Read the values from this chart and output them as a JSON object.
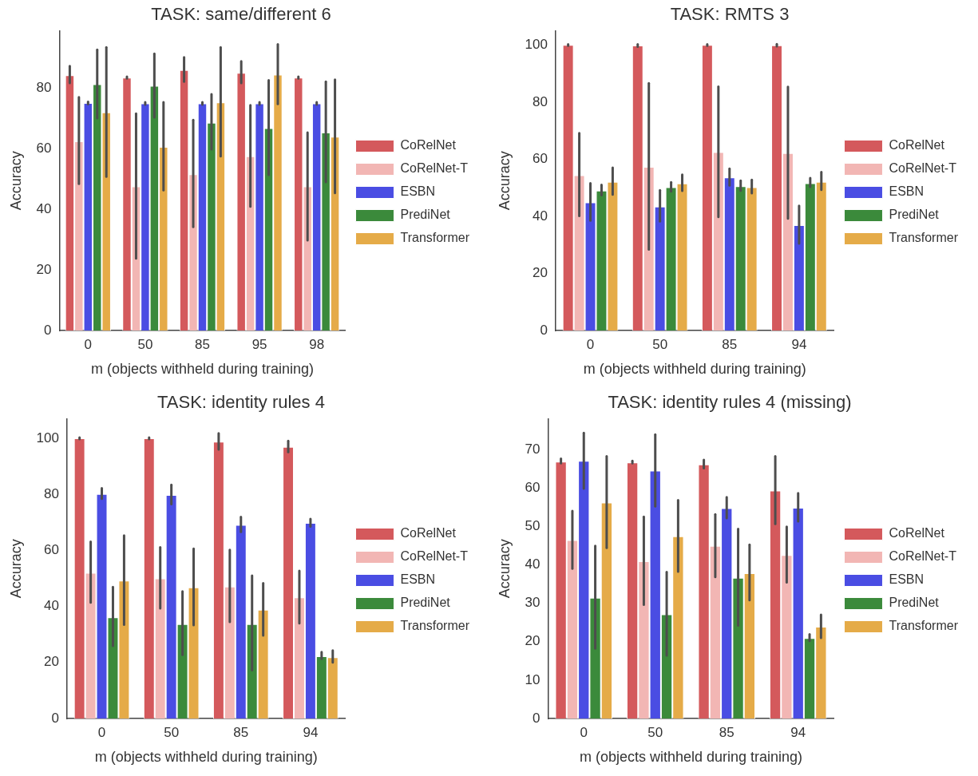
{
  "chart_data": [
    {
      "type": "bar",
      "title": "TASK: same/different 6",
      "xlabel": "m (objects withheld during training)",
      "ylabel": "Accuracy",
      "categories": [
        "0",
        "50",
        "85",
        "95",
        "98"
      ],
      "ylim": [
        0,
        99
      ],
      "yticks": [
        0,
        20,
        40,
        60,
        80
      ],
      "grid": false,
      "legend": "right",
      "series": [
        {
          "name": "CoRelNet",
          "color": "#d4595c",
          "values": [
            84.3,
            83.5,
            86,
            85.1,
            83.5
          ],
          "errors": [
            [
              81.7,
              87.3
            ],
            [
              83.2,
              83.8
            ],
            [
              82.2,
              90.2
            ],
            [
              81.7,
              88.9
            ],
            [
              83.2,
              83.8
            ]
          ]
        },
        {
          "name": "CoRelNet-T",
          "color": "#f2b6b4",
          "values": [
            62.5,
            47.6,
            51.6,
            57.5,
            47.6
          ],
          "errors": [
            [
              48.4,
              77
            ],
            [
              23.8,
              71.6
            ],
            [
              34.2,
              69.5
            ],
            [
              40.9,
              74.4
            ],
            [
              29.8,
              65.4
            ]
          ]
        },
        {
          "name": "ESBN",
          "color": "#4a4de3",
          "values": [
            75.1,
            75,
            75,
            75,
            75
          ],
          "errors": [
            [
              74.7,
              75.5
            ],
            [
              74.6,
              75.4
            ],
            [
              74.6,
              75.4
            ],
            [
              74.6,
              75.4
            ],
            [
              74.6,
              75.4
            ]
          ]
        },
        {
          "name": "PrediNet",
          "color": "#3b8a3b",
          "values": [
            81.3,
            80.8,
            68.6,
            66.8,
            65.4
          ],
          "errors": [
            [
              70.1,
              92.7
            ],
            [
              70.4,
              91.4
            ],
            [
              59.8,
              78
            ],
            [
              51.4,
              82.6
            ],
            [
              49,
              82.2
            ]
          ]
        },
        {
          "name": "Transformer",
          "color": "#e5ab48",
          "values": [
            72,
            60.6,
            75.3,
            84.5,
            64
          ],
          "errors": [
            [
              50.8,
              93.5
            ],
            [
              46.3,
              75.4
            ],
            [
              57.5,
              93.5
            ],
            [
              74.8,
              94.5
            ],
            [
              45.4,
              82.8
            ]
          ]
        }
      ]
    },
    {
      "type": "bar",
      "title": "TASK: RMTS 3",
      "xlabel": "m (objects withheld during training)",
      "ylabel": "Accuracy",
      "categories": [
        "0",
        "50",
        "85",
        "94"
      ],
      "ylim": [
        0,
        105
      ],
      "yticks": [
        0,
        20,
        40,
        60,
        80,
        100
      ],
      "grid": false,
      "legend": "right",
      "series": [
        {
          "name": "CoRelNet",
          "color": "#d4595c",
          "values": [
            100,
            99.8,
            100,
            99.9
          ],
          "errors": [
            [
              99.7,
              100.2
            ],
            [
              99.4,
              100.2
            ],
            [
              99.7,
              100.2
            ],
            [
              99.5,
              100.3
            ]
          ]
        },
        {
          "name": "CoRelNet-T",
          "color": "#f2b6b4",
          "values": [
            54.4,
            57.3,
            62.5,
            62.1
          ],
          "errors": [
            [
              40.1,
              69.1
            ],
            [
              28.4,
              86.6
            ],
            [
              39.8,
              85.4
            ],
            [
              39.2,
              85.3
            ]
          ]
        },
        {
          "name": "ESBN",
          "color": "#4a4de3",
          "values": [
            44.9,
            43.4,
            53.6,
            36.9
          ],
          "errors": [
            [
              38.5,
              51.6
            ],
            [
              38.2,
              49.1
            ],
            [
              50.8,
              56.7
            ],
            [
              30.5,
              43.7
            ]
          ]
        },
        {
          "name": "PrediNet",
          "color": "#3b8a3b",
          "values": [
            49,
            50.2,
            50.5,
            51.6
          ],
          "errors": [
            [
              47.4,
              51
            ],
            [
              48.7,
              51.9
            ],
            [
              49,
              52.5
            ],
            [
              50.3,
              53.4
            ]
          ]
        },
        {
          "name": "Transformer",
          "color": "#e5ab48",
          "values": [
            52.1,
            51.5,
            50.2,
            52.1
          ],
          "errors": [
            [
              47.6,
              57
            ],
            [
              48.9,
              54.6
            ],
            [
              48.1,
              52.8
            ],
            [
              49.3,
              55.5
            ]
          ]
        }
      ]
    },
    {
      "type": "bar",
      "title": "TASK: identity rules 4",
      "xlabel": "m (objects withheld during training)",
      "ylabel": "Accuracy",
      "categories": [
        "0",
        "50",
        "85",
        "94"
      ],
      "ylim": [
        0,
        107
      ],
      "yticks": [
        0,
        20,
        40,
        60,
        80,
        100
      ],
      "grid": false,
      "legend": "center right",
      "series": [
        {
          "name": "CoRelNet",
          "color": "#d4595c",
          "values": [
            100,
            100,
            98.8,
            96.9
          ],
          "errors": [
            [
              99.7,
              100.3
            ],
            [
              99.7,
              100.3
            ],
            [
              96,
              101.8
            ],
            [
              95.1,
              99.1
            ]
          ]
        },
        {
          "name": "CoRelNet-T",
          "color": "#f2b6b4",
          "values": [
            52,
            50,
            47.1,
            43.2
          ],
          "errors": [
            [
              41.4,
              63.1
            ],
            [
              39.3,
              61.1
            ],
            [
              34.5,
              60.2
            ],
            [
              34,
              52.7
            ]
          ]
        },
        {
          "name": "ESBN",
          "color": "#4a4de3",
          "values": [
            80.1,
            79.8,
            69.1,
            69.8
          ],
          "errors": [
            [
              78.4,
              82.2
            ],
            [
              76.5,
              83.4
            ],
            [
              66.6,
              71.9
            ],
            [
              68.5,
              71.2
            ]
          ]
        },
        {
          "name": "PrediNet",
          "color": "#3b8a3b",
          "values": [
            36.1,
            33.7,
            33.7,
            22.2
          ],
          "errors": [
            [
              25.9,
              46.9
            ],
            [
              22.7,
              45.4
            ],
            [
              17.2,
              51
            ],
            [
              21.3,
              23.7
            ]
          ]
        },
        {
          "name": "Transformer",
          "color": "#e5ab48",
          "values": [
            49.2,
            46.8,
            38.8,
            21.9
          ],
          "errors": [
            [
              33.5,
              65.3
            ],
            [
              33.3,
              60.6
            ],
            [
              29.6,
              48.3
            ],
            [
              20,
              24.3
            ]
          ]
        }
      ]
    },
    {
      "type": "bar",
      "title": "TASK: identity rules 4 (missing)",
      "xlabel": "m (objects withheld during training)",
      "ylabel": "Accuracy",
      "categories": [
        "0",
        "50",
        "85",
        "94"
      ],
      "ylim": [
        0,
        78
      ],
      "yticks": [
        0,
        10,
        20,
        30,
        40,
        50,
        60,
        70
      ],
      "grid": false,
      "legend": "right",
      "series": [
        {
          "name": "CoRelNet",
          "color": "#d4595c",
          "values": [
            66.8,
            66.6,
            66.1,
            59.3
          ],
          "errors": [
            [
              66.4,
              67.6
            ],
            [
              66.4,
              67
            ],
            [
              65.1,
              67.3
            ],
            [
              50.6,
              68.2
            ]
          ]
        },
        {
          "name": "CoRelNet-T",
          "color": "#f2b6b4",
          "values": [
            46.4,
            40.9,
            44.9,
            42.5
          ],
          "errors": [
            [
              39,
              54
            ],
            [
              29.6,
              52.5
            ],
            [
              36.8,
              53.1
            ],
            [
              35.4,
              49.9
            ]
          ]
        },
        {
          "name": "ESBN",
          "color": "#4a4de3",
          "values": [
            67,
            64.5,
            54.7,
            54.8
          ],
          "errors": [
            [
              59.8,
              74.3
            ],
            [
              55.2,
              73.9
            ],
            [
              52.1,
              57.6
            ],
            [
              51.3,
              58.6
            ]
          ]
        },
        {
          "name": "PrediNet",
          "color": "#3b8a3b",
          "values": [
            31.4,
            27.1,
            36.6,
            20.9
          ],
          "errors": [
            [
              18.2,
              44.9
            ],
            [
              16.4,
              38.1
            ],
            [
              24.2,
              49.3
            ],
            [
              20.2,
              21.9
            ]
          ]
        },
        {
          "name": "Transformer",
          "color": "#e5ab48",
          "values": [
            56.2,
            47.4,
            37.8,
            23.9
          ],
          "errors": [
            [
              44.4,
              68.2
            ],
            [
              38.2,
              56.8
            ],
            [
              30.8,
              45.2
            ],
            [
              21,
              27
            ]
          ]
        }
      ]
    }
  ]
}
